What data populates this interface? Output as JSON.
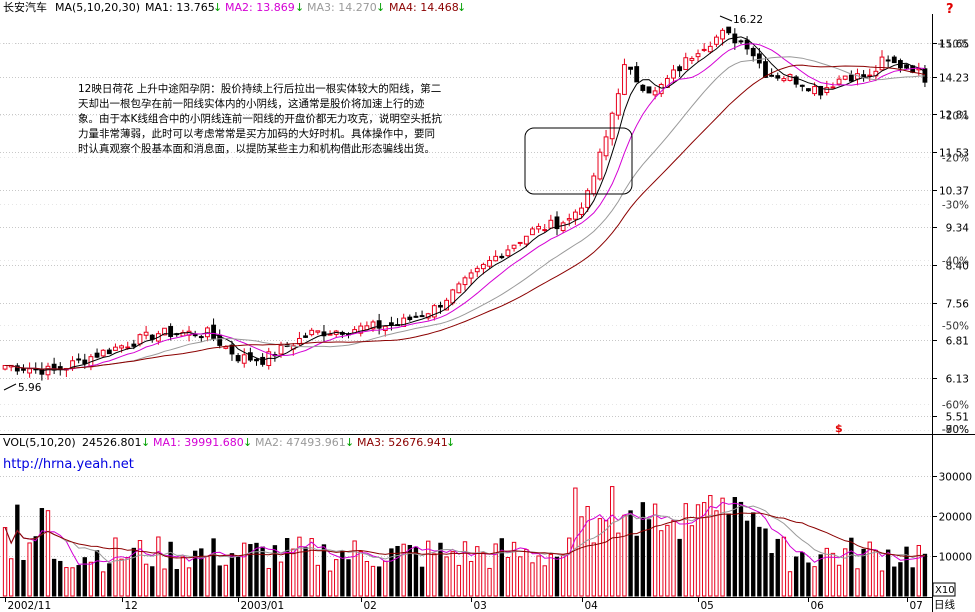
{
  "header": {
    "stock_name": "长安汽车",
    "ma_label": "MA(5,10,20,30)",
    "ma1": "MA1: 13.765",
    "ma2": "MA2: 13.869",
    "ma3": "MA3: 14.270",
    "ma4": "MA4: 14.468"
  },
  "volume_header": {
    "label": "VOL(5,10,20)",
    "value": "24526.801",
    "ma1": "MA1: 39991.680",
    "ma2": "MA2: 47493.961",
    "ma3": "MA3: 52676.941"
  },
  "annotation": {
    "lines": [
      "12映日荷花  上升中途阳孕阴：股价持续上行后拉出一根实体较大的阳线，第二",
      "天却出一根包孕在前一阳线实体内的小阴线，这通常是股价将加速上行的迹",
      "象。由于本K线组合中的小阴线连前一阳线的开盘价都无力攻克，说明空头抵抗",
      "力量非常薄弱，此时可以考虑常常是买方加码的大好时机。具体操作中，要同",
      "时认真观察个股基本面和消息面，以提防某些主力和机构借此形态骗线出货。"
    ]
  },
  "watermark": "http://hrna.yeah.net",
  "colors": {
    "up": "#e8001c",
    "down": "#000000",
    "ma1": "#000000",
    "ma2": "#d400d4",
    "ma3": "#9a9a9a",
    "ma4": "#8b0000",
    "grid": "#c8c8c8",
    "label_gray": "#333333",
    "arrow_green": "#00a000",
    "logo_red": "#e00000"
  },
  "icons": [
    "down-arrow-icon",
    "help-icon",
    "dollar-icon"
  ],
  "chart_data": [
    {
      "type": "candlestick",
      "title": "长安汽车",
      "price_ticks": [
        "15.65",
        "14.23",
        "12.81",
        "11.53",
        "10.37",
        "9.34",
        "8.40",
        "7.56",
        "6.81",
        "6.13",
        "5.51"
      ],
      "percent_ticks": [
        "+10%",
        "-10%",
        "-20%",
        "-30%",
        "-40%",
        "-50%",
        "-60%",
        "-70%",
        "-80%",
        "-90%"
      ],
      "ylim": [
        5.3,
        16.5
      ],
      "scale": "log",
      "annotations": [
        {
          "text": "5.96",
          "value": 5.96
        },
        {
          "text": "16.22",
          "value": 16.22
        }
      ],
      "series": [
        {
          "name": "MA1",
          "period": 5
        },
        {
          "name": "MA2",
          "period": 10
        },
        {
          "name": "MA3",
          "period": 20
        },
        {
          "name": "MA4",
          "period": 30
        }
      ],
      "knots": [
        [
          0,
          6.35
        ],
        [
          8,
          6.25
        ],
        [
          15,
          6.55
        ],
        [
          25,
          6.95
        ],
        [
          33,
          6.95
        ],
        [
          38,
          6.5
        ],
        [
          42,
          6.45
        ],
        [
          50,
          6.95
        ],
        [
          58,
          7.05
        ],
        [
          64,
          7.12
        ],
        [
          70,
          7.45
        ],
        [
          75,
          8.0
        ],
        [
          80,
          8.6
        ],
        [
          86,
          9.25
        ],
        [
          92,
          9.55
        ],
        [
          95,
          10.2
        ],
        [
          98,
          12.0
        ],
        [
          101,
          14.6
        ],
        [
          104,
          13.9
        ],
        [
          106,
          13.6
        ],
        [
          110,
          14.6
        ],
        [
          113,
          15.4
        ],
        [
          117,
          16.05
        ],
        [
          121,
          15.6
        ],
        [
          124,
          14.4
        ],
        [
          128,
          14.2
        ],
        [
          133,
          13.7
        ],
        [
          137,
          14.3
        ],
        [
          141,
          14.2
        ],
        [
          143,
          14.85
        ],
        [
          148,
          14.6
        ],
        [
          150,
          14.2
        ]
      ]
    },
    {
      "type": "bar",
      "title": "VOL(5,10,20)",
      "ylim": [
        0,
        37000
      ],
      "y_ticks": [
        "30000",
        "20000",
        "10000"
      ],
      "multiplier": "X10",
      "x_ticks": [
        "2002/11",
        "12",
        "2003/01",
        "02",
        "03",
        "04",
        "05",
        "06",
        "07"
      ],
      "x_label": "日线",
      "series": [
        {
          "name": "MA1",
          "value": 39991.68
        },
        {
          "name": "MA2",
          "value": 47493.961
        },
        {
          "name": "MA3",
          "value": 52676.941
        }
      ],
      "last_value": 24526.801
    }
  ]
}
